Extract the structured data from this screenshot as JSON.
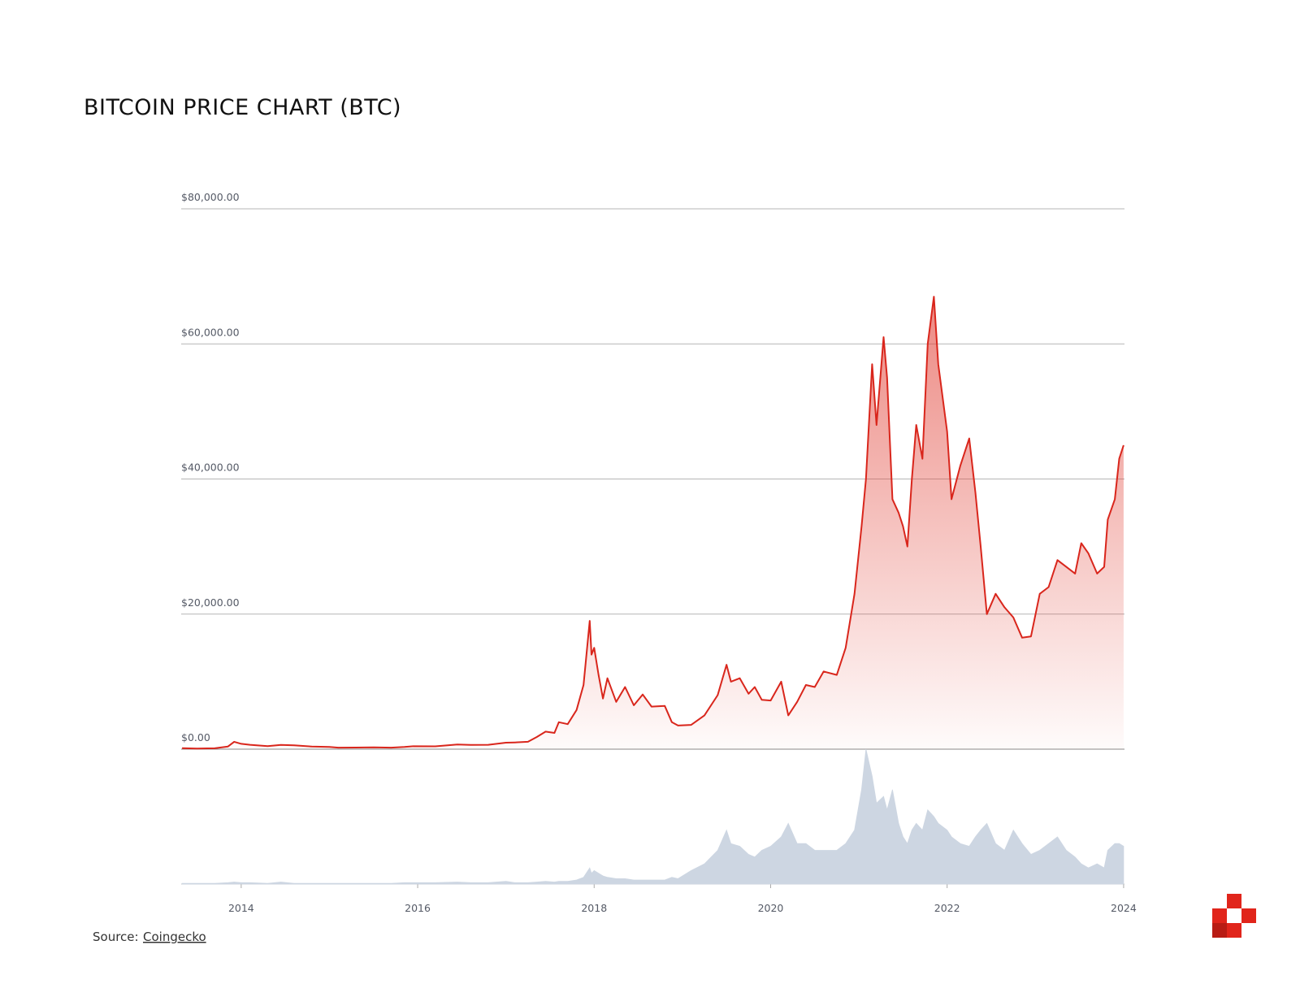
{
  "chart_data": {
    "type": "line",
    "title": "BITCOIN PRICE CHART (BTC)",
    "source_label": "Source:",
    "source_link": "Coingecko",
    "x": [
      2013.33,
      2013.5,
      2013.7,
      2013.85,
      2013.92,
      2014.0,
      2014.1,
      2014.3,
      2014.45,
      2014.6,
      2014.8,
      2015.0,
      2015.1,
      2015.3,
      2015.5,
      2015.7,
      2015.85,
      2015.95,
      2016.2,
      2016.45,
      2016.6,
      2016.8,
      2017.0,
      2017.1,
      2017.25,
      2017.35,
      2017.45,
      2017.55,
      2017.6,
      2017.7,
      2017.8,
      2017.88,
      2017.95,
      2017.97,
      2018.0,
      2018.05,
      2018.1,
      2018.15,
      2018.25,
      2018.35,
      2018.45,
      2018.55,
      2018.65,
      2018.8,
      2018.88,
      2018.95,
      2019.1,
      2019.25,
      2019.4,
      2019.5,
      2019.55,
      2019.65,
      2019.75,
      2019.82,
      2019.9,
      2020.0,
      2020.12,
      2020.2,
      2020.3,
      2020.4,
      2020.5,
      2020.6,
      2020.75,
      2020.85,
      2020.95,
      2021.03,
      2021.08,
      2021.15,
      2021.2,
      2021.28,
      2021.32,
      2021.38,
      2021.45,
      2021.5,
      2021.55,
      2021.6,
      2021.65,
      2021.72,
      2021.78,
      2021.85,
      2021.9,
      2022.0,
      2022.05,
      2022.15,
      2022.25,
      2022.32,
      2022.38,
      2022.45,
      2022.55,
      2022.65,
      2022.75,
      2022.85,
      2022.95,
      2023.05,
      2023.15,
      2023.25,
      2023.35,
      2023.45,
      2023.52,
      2023.6,
      2023.7,
      2023.78,
      2023.82,
      2023.9,
      2023.95,
      2024.0
    ],
    "series": [
      {
        "color": "#d9261c",
        "values": [
          150,
          100,
          130,
          400,
          1100,
          800,
          650,
          450,
          620,
          580,
          380,
          320,
          230,
          240,
          260,
          230,
          330,
          430,
          420,
          700,
          620,
          650,
          960,
          1000,
          1100,
          1800,
          2600,
          2400,
          4000,
          3700,
          5800,
          9500,
          19000,
          14000,
          15000,
          11000,
          7500,
          10500,
          7000,
          9200,
          6500,
          8100,
          6300,
          6400,
          4000,
          3500,
          3600,
          5000,
          8000,
          12500,
          10000,
          10500,
          8200,
          9200,
          7300,
          7200,
          10000,
          5000,
          7000,
          9500,
          9200,
          11500,
          11000,
          15000,
          23000,
          33000,
          40000,
          57000,
          48000,
          61000,
          55000,
          37000,
          35000,
          33000,
          30000,
          40000,
          48000,
          43000,
          60000,
          67000,
          57000,
          47000,
          37000,
          42000,
          46000,
          38000,
          30000,
          20000,
          23000,
          21000,
          19500,
          16500,
          16700,
          23000,
          24000,
          28000,
          27000,
          26000,
          30500,
          29000,
          26000,
          27000,
          34000,
          37000,
          43000,
          45000
        ]
      },
      {
        "color": "#cdd6e2",
        "axis": "y2",
        "values": [
          0.5,
          0.5,
          0.5,
          1,
          1.5,
          1,
          1,
          0.5,
          1.5,
          0.5,
          0.5,
          0.5,
          0.5,
          0.5,
          0.5,
          0.5,
          1,
          1,
          1,
          1.5,
          1,
          1,
          2,
          1,
          1,
          1.5,
          2,
          1.5,
          2,
          2,
          3,
          5,
          12,
          8,
          10,
          8,
          6,
          5,
          4,
          4,
          3,
          3,
          3,
          3,
          5,
          4,
          10,
          15,
          25,
          40,
          30,
          28,
          22,
          20,
          25,
          28,
          35,
          45,
          30,
          30,
          25,
          25,
          25,
          30,
          40,
          70,
          100,
          80,
          60,
          65,
          55,
          70,
          45,
          35,
          30,
          40,
          45,
          40,
          55,
          50,
          45,
          40,
          35,
          30,
          28,
          35,
          40,
          45,
          30,
          25,
          40,
          30,
          22,
          25,
          30,
          35,
          25,
          20,
          15,
          12,
          15,
          12,
          25,
          30,
          30,
          28
        ]
      }
    ],
    "xlim": [
      2013.32,
      2024.01
    ],
    "xticks": [
      2014,
      2016,
      2018,
      2020,
      2022,
      2024
    ],
    "ylim": [
      0,
      80000
    ],
    "yticks": [
      {
        "value": 0,
        "label": "$0.00"
      },
      {
        "value": 20000,
        "label": "$20,000.00"
      },
      {
        "value": 40000,
        "label": "$40,000.00"
      },
      {
        "value": 60000,
        "label": "$60,000.00"
      },
      {
        "value": 80000,
        "label": "$80,000.00"
      }
    ],
    "y2lim": [
      0,
      100
    ],
    "grid": true
  }
}
